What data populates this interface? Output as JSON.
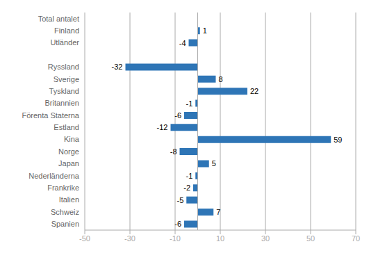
{
  "chart_data": {
    "type": "bar",
    "orientation": "horizontal",
    "categories": [
      "Total antalet",
      "Finland",
      "Utländer",
      null,
      "Ryssland",
      "Sverige",
      "Tyskland",
      "Britannien",
      "Förenta Staterna",
      "Estland",
      "Kina",
      "Norge",
      "Japan",
      "Nederländerna",
      "Frankrike",
      "Italien",
      "Schweiz",
      "Spanien"
    ],
    "values": [
      0,
      1,
      -4,
      null,
      -32,
      8,
      22,
      -1,
      -6,
      -12,
      59,
      -8,
      5,
      -1,
      -2,
      -5,
      7,
      -6
    ],
    "color": "#2e75b6",
    "xlim": [
      -50,
      70
    ],
    "xticks": [
      -50,
      -30,
      -10,
      10,
      30,
      50,
      70
    ],
    "grid": true,
    "data_labels": true
  }
}
